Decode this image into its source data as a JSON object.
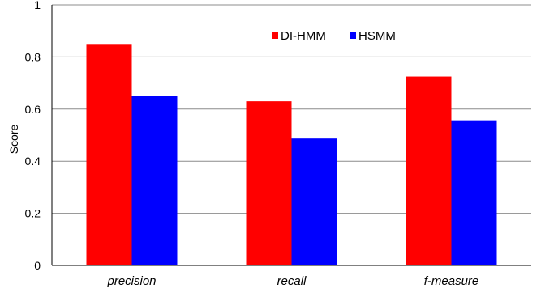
{
  "chart_data": {
    "type": "bar",
    "title": "",
    "xlabel": "",
    "ylabel": "Score",
    "ylim": [
      0,
      1
    ],
    "yticks": [
      "0",
      "0.2",
      "0.4",
      "0.6",
      "0.8",
      "1"
    ],
    "grid": true,
    "legend_position": "top-center",
    "categories": [
      "precision",
      "recall",
      "f-measure"
    ],
    "series": [
      {
        "name": "DI-HMM",
        "color": "#ff0000",
        "values": [
          0.85,
          0.63,
          0.725
        ]
      },
      {
        "name": "HSMM",
        "color": "#0000ff",
        "values": [
          0.65,
          0.487,
          0.557
        ]
      }
    ]
  }
}
